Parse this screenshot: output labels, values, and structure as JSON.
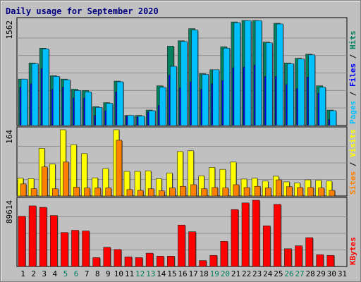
{
  "chart_data": {
    "type": "bar",
    "title": "Daily usage for September 2020",
    "days": [
      "1",
      "2",
      "3",
      "4",
      "5",
      "6",
      "7",
      "8",
      "9",
      "10",
      "11",
      "12",
      "13",
      "14",
      "15",
      "16",
      "17",
      "18",
      "19",
      "20",
      "21",
      "22",
      "23",
      "24",
      "25",
      "26",
      "27",
      "28",
      "29",
      "30",
      "31"
    ],
    "weekend_days": [
      "5",
      "6",
      "12",
      "13",
      "19",
      "20",
      "26",
      "27"
    ],
    "colors": {
      "hits": "#00805c",
      "files": "#0000ff",
      "pages": "#00c0ff",
      "visits": "#ffff00",
      "sites": "#ff8000",
      "kbytes": "#ff0000",
      "weekday_label": "#000000",
      "weekend_label": "#00805c",
      "background": "#c0c0c0",
      "plot_area": "#c0c0c0"
    },
    "panels": [
      {
        "name": "hits-files-pages",
        "ymax_label": "1562",
        "ylim": [
          0,
          1562
        ],
        "legend": [
          {
            "text": "Pages",
            "color": "#00c0ff"
          },
          {
            "text": " / ",
            "color": "#000000"
          },
          {
            "text": "Files",
            "color": "#0000ff"
          },
          {
            "text": " / ",
            "color": "#000000"
          },
          {
            "text": "Hits",
            "color": "#00805c"
          }
        ],
        "series": [
          {
            "name": "Hits",
            "values": [
              690,
              930,
              1150,
              740,
              690,
              540,
              520,
              280,
              340,
              660,
              150,
              150,
              230,
              590,
              1180,
              1260,
              1440,
              770,
              830,
              1170,
              1540,
              1562,
              1562,
              1240,
              1520,
              930,
              1000,
              1060,
              590,
              230,
              0
            ]
          },
          {
            "name": "Files",
            "values": [
              570,
              620,
              850,
              540,
              570,
              410,
              410,
              150,
              220,
              500,
              140,
              130,
              200,
              300,
              750,
              560,
              650,
              540,
              620,
              670,
              860,
              870,
              900,
              730,
              730,
              610,
              550,
              720,
              480,
              90,
              0
            ]
          },
          {
            "name": "Pages",
            "values": [
              690,
              920,
              1140,
              730,
              680,
              520,
              500,
              270,
              330,
              650,
              150,
              140,
              220,
              570,
              880,
              1250,
              1420,
              760,
              830,
              1150,
              1530,
              1560,
              1560,
              1230,
              1510,
              920,
              990,
              1050,
              570,
              220,
              0
            ]
          }
        ]
      },
      {
        "name": "visits-sites",
        "ymax_label": "164",
        "ylim": [
          0,
          164
        ],
        "legend": [
          {
            "text": "Sites",
            "color": "#ff8000"
          },
          {
            "text": " / ",
            "color": "#000000"
          },
          {
            "text": "Visits",
            "color": "#ffff00"
          }
        ],
        "series": [
          {
            "name": "Visits",
            "values": [
              44,
              43,
              118,
              79,
              164,
              127,
              105,
              45,
              68,
              164,
              61,
              61,
              62,
              43,
              57,
              110,
              112,
              50,
              71,
              66,
              84,
              42,
              44,
              37,
              49,
              35,
              32,
              40,
              39,
              37,
              0
            ]
          },
          {
            "name": "Sites",
            "values": [
              30,
              18,
              72,
              18,
              84,
              22,
              20,
              20,
              20,
              138,
              16,
              14,
              18,
              13,
              20,
              24,
              28,
              18,
              21,
              20,
              28,
              21,
              24,
              20,
              40,
              23,
              21,
              21,
              20,
              14,
              0
            ]
          }
        ]
      },
      {
        "name": "kbytes",
        "ymax_label": "89614",
        "ylim": [
          0,
          89614
        ],
        "legend": [
          {
            "text": "KBytes",
            "color": "#ff0000"
          }
        ],
        "series": [
          {
            "name": "KBytes",
            "values": [
              68000,
              82000,
              80000,
              69000,
              46000,
              49000,
              48000,
              12000,
              26000,
              23000,
              13000,
              12000,
              18000,
              14000,
              14000,
              56000,
              47000,
              8000,
              15000,
              34000,
              77000,
              86000,
              89614,
              55000,
              84000,
              24000,
              28000,
              39000,
              16000,
              15000,
              0
            ]
          }
        ]
      }
    ]
  }
}
